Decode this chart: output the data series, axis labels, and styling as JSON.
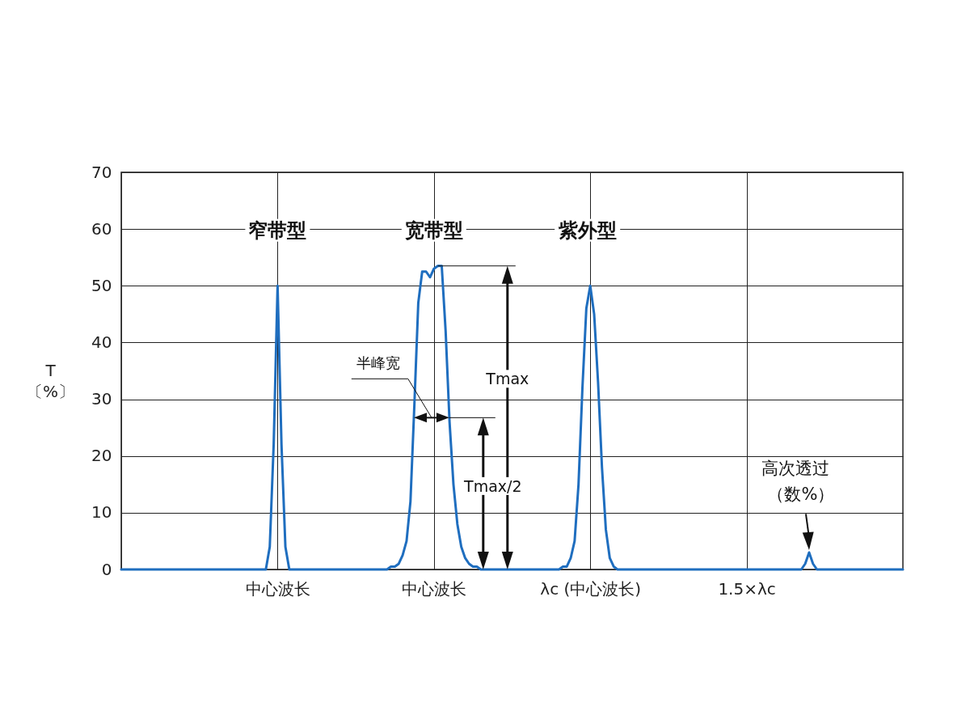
{
  "chart_data": {
    "type": "line",
    "ylabel": "T 〔%〕",
    "categories": [
      null,
      null,
      null,
      null,
      null,
      null,
      null,
      null,
      null,
      null,
      null,
      null,
      null,
      null,
      null,
      null,
      null,
      null,
      null,
      null,
      null,
      null,
      null,
      null,
      null,
      null,
      null,
      null,
      null,
      null,
      null,
      null,
      null,
      null,
      null,
      null,
      null,
      null,
      null,
      null,
      "中心波长",
      null,
      null,
      null,
      null,
      null,
      null,
      null,
      null,
      null,
      null,
      null,
      null,
      null,
      null,
      null,
      null,
      null,
      null,
      null,
      null,
      null,
      null,
      null,
      null,
      null,
      null,
      null,
      null,
      null,
      null,
      null,
      null,
      null,
      null,
      null,
      null,
      null,
      null,
      null,
      "中心波长",
      null,
      null,
      null,
      null,
      null,
      null,
      null,
      null,
      null,
      null,
      null,
      null,
      null,
      null,
      null,
      null,
      null,
      null,
      null,
      null,
      null,
      null,
      null,
      null,
      null,
      null,
      null,
      null,
      null,
      null,
      null,
      null,
      null,
      null,
      null,
      null,
      null,
      null,
      null,
      "λc (中心波长)",
      null,
      null,
      null,
      null,
      null,
      null,
      null,
      null,
      null,
      null,
      null,
      null,
      null,
      null,
      null,
      null,
      null,
      null,
      null,
      null,
      null,
      null,
      null,
      null,
      null,
      null,
      null,
      null,
      null,
      null,
      null,
      null,
      null,
      null,
      null,
      null,
      null,
      null,
      null,
      "1.5×λc",
      null,
      null,
      null,
      null,
      null,
      null,
      null,
      null,
      null,
      null,
      null,
      null,
      null,
      null,
      null,
      null,
      null,
      null,
      null,
      null,
      null,
      null,
      null,
      null,
      null,
      null,
      null,
      null,
      null,
      null,
      null,
      null,
      null,
      null,
      null,
      null,
      null,
      null,
      null,
      null
    ],
    "series": [
      {
        "color": "#1f6ebf",
        "values": [
          0,
          0,
          0,
          0,
          0,
          0,
          0,
          0,
          0,
          0,
          0,
          0,
          0,
          0,
          0,
          0,
          0,
          0,
          0,
          0,
          0,
          0,
          0,
          0,
          0,
          0,
          0,
          0,
          0,
          0,
          0,
          0,
          0,
          0,
          0,
          0,
          0,
          0,
          4,
          22,
          50,
          22,
          4,
          0,
          0,
          0,
          0,
          0,
          0,
          0,
          0,
          0,
          0,
          0,
          0,
          0,
          0,
          0,
          0,
          0,
          0,
          0,
          0,
          0,
          0,
          0,
          0,
          0,
          0,
          0.5,
          0.5,
          1,
          2.5,
          5,
          12,
          29,
          47,
          52.5,
          52.5,
          51.5,
          53,
          53.5,
          53.5,
          42,
          26,
          15,
          8,
          4,
          2,
          1,
          0.5,
          0.5,
          0,
          0,
          0,
          0,
          0,
          0,
          0,
          0,
          0,
          0,
          0,
          0,
          0,
          0,
          0,
          0,
          0,
          0,
          0,
          0,
          0,
          0.5,
          0.5,
          2,
          5,
          15,
          32,
          46,
          50,
          45,
          33,
          18,
          7,
          2,
          0.5,
          0,
          0,
          0,
          0,
          0,
          0,
          0,
          0,
          0,
          0,
          0,
          0,
          0,
          0,
          0,
          0,
          0,
          0,
          0,
          0,
          0,
          0,
          0,
          0,
          0,
          0,
          0,
          0,
          0,
          0,
          0,
          0,
          0,
          0,
          0,
          0,
          0,
          0,
          0,
          0,
          0,
          0,
          0,
          0,
          0,
          0,
          0,
          0,
          1,
          3,
          1,
          0,
          0,
          0,
          0,
          0,
          0,
          0,
          0,
          0,
          0,
          0,
          0,
          0,
          0,
          0,
          0,
          0,
          0,
          0,
          0,
          0,
          0,
          0
        ]
      }
    ],
    "ylim": [
      0,
      70
    ],
    "yticks": [
      0,
      10,
      20,
      30,
      40,
      50,
      60,
      70
    ],
    "grid": true,
    "marker": "none",
    "line_style": "solid",
    "annotations": [
      "窄带型",
      "宽带型",
      "紫外型",
      "半峰宽",
      "Tmax",
      "Tmax/2",
      "高次透过",
      "（数%）"
    ]
  }
}
